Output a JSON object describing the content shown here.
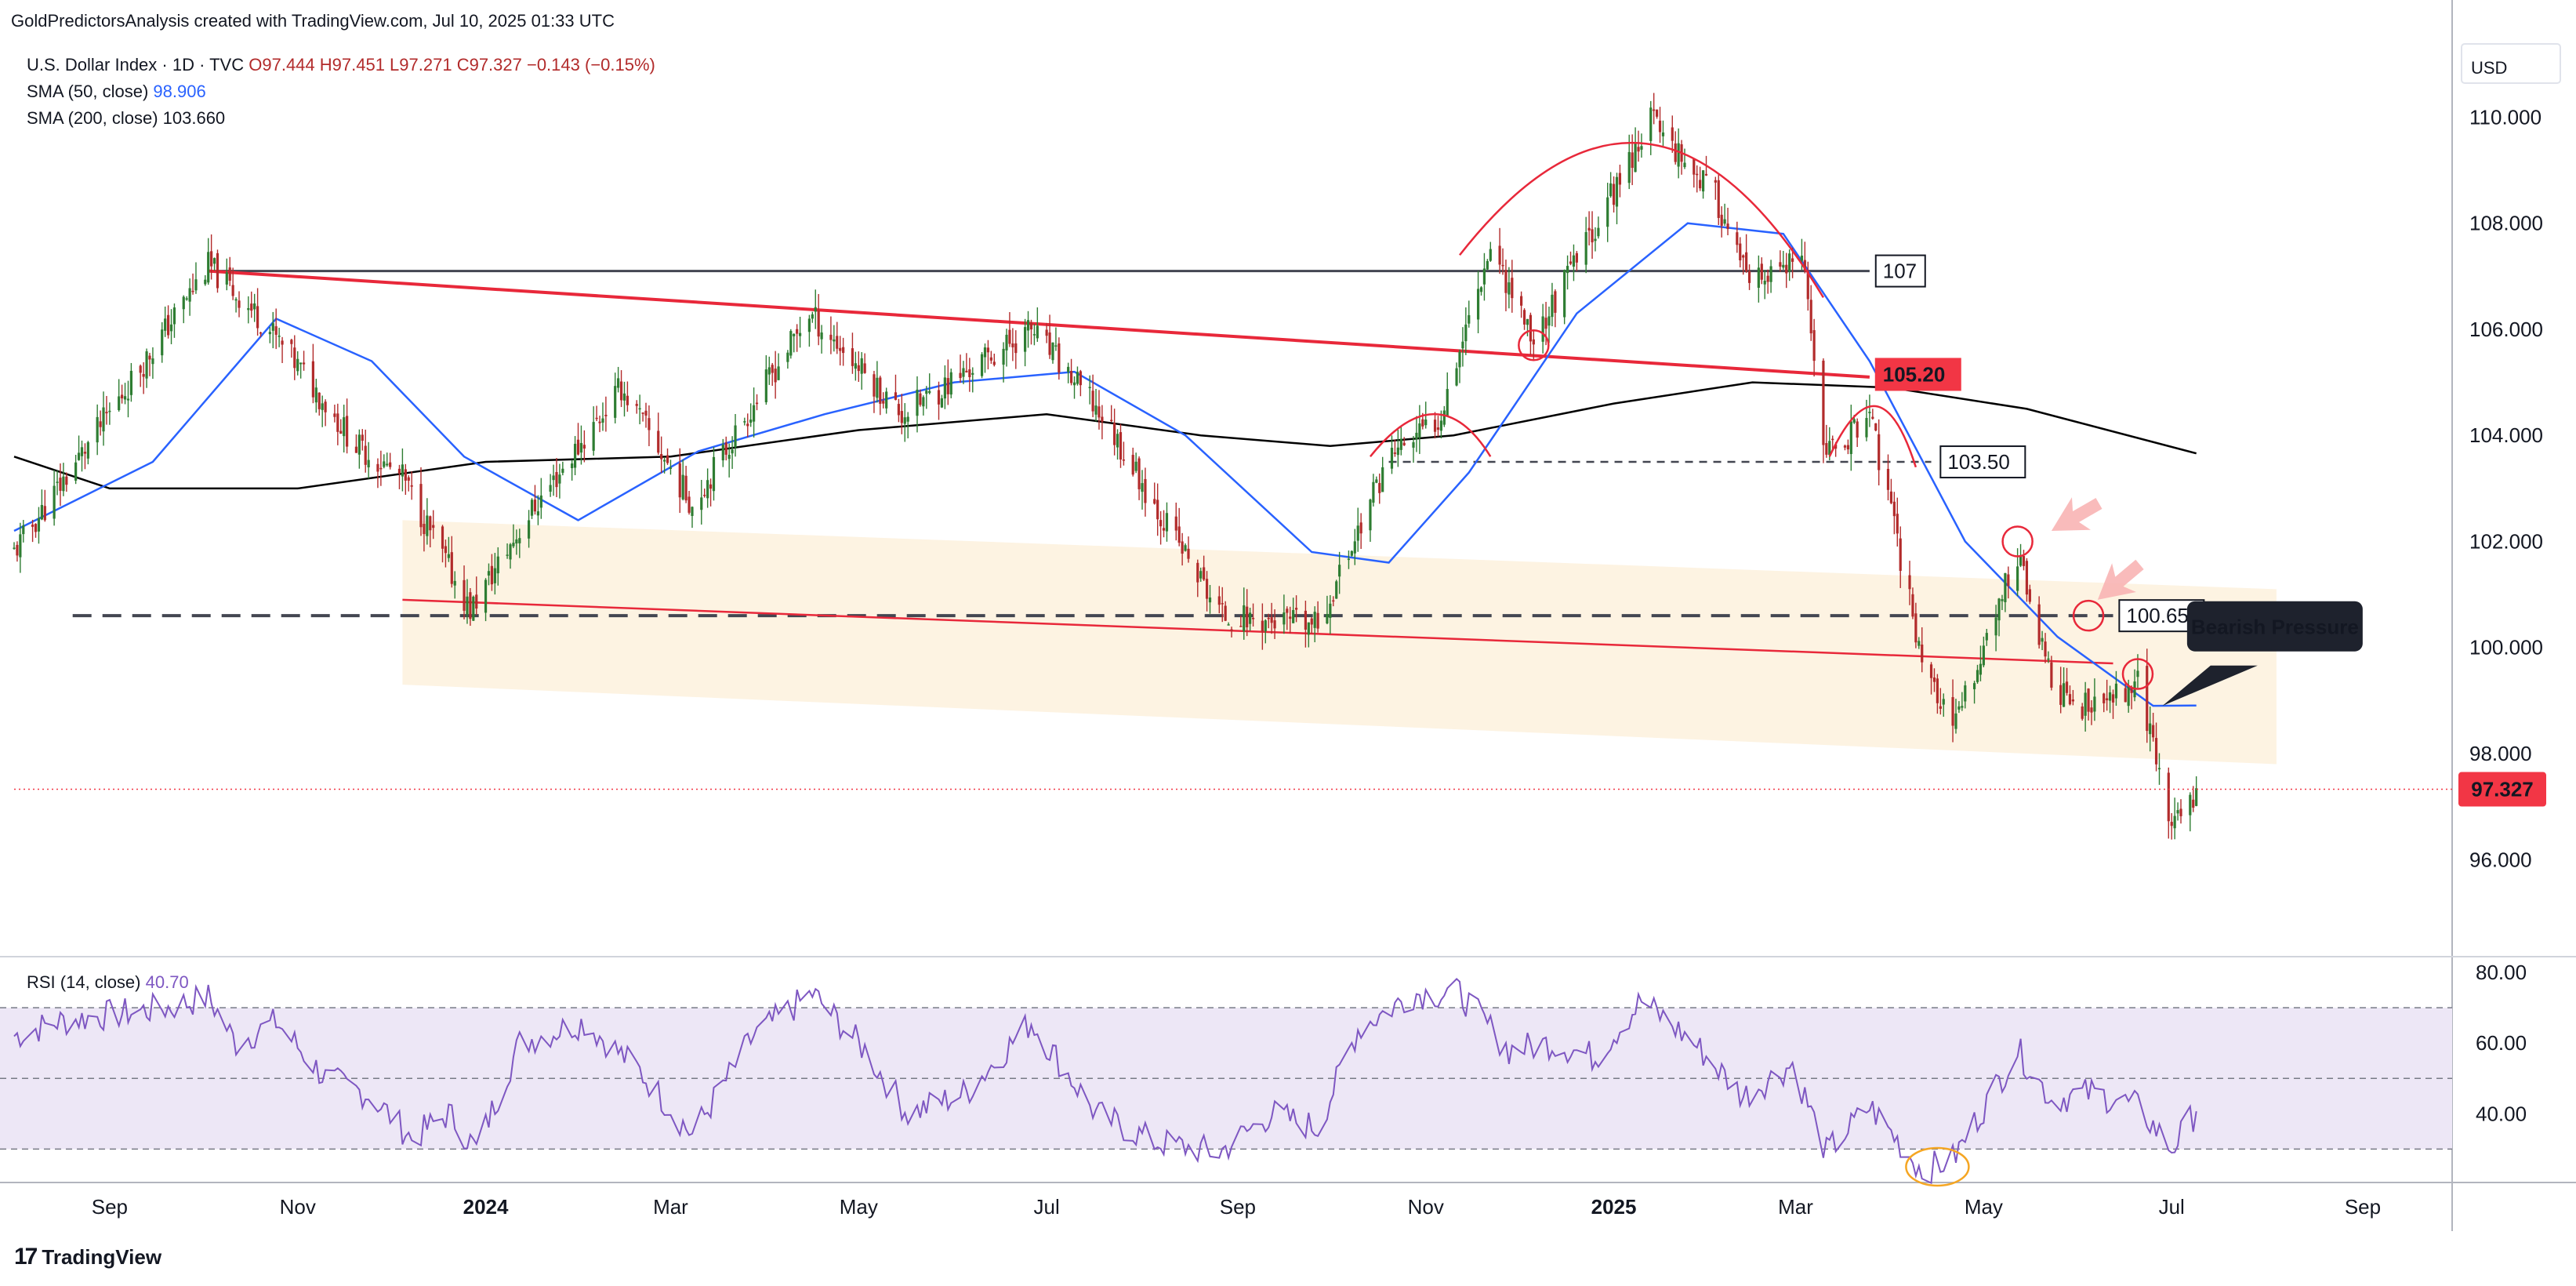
{
  "header": {
    "attribution": "GoldPredictorsAnalysis created with TradingView.com, Jul 10, 2025 01:33 UTC"
  },
  "legend": {
    "symbol": "U.S. Dollar Index · 1D · TVC",
    "ohlc": "O97.444 H97.451 L97.271 C97.327 −0.143 (−0.15%)",
    "sma50_label": "SMA (50, close)",
    "sma50_value": "98.906",
    "sma200_label": "SMA (200, close)",
    "sma200_value": "103.660",
    "rsi_label": "RSI (14, close)",
    "rsi_value": "40.70"
  },
  "currency": "USD",
  "price_badge": "97.327",
  "footer_logo": "TradingView",
  "colors": {
    "up": "#26a69a",
    "up_candle": "#2e7d32",
    "down": "#b22b2b",
    "sma50": "#2962ff",
    "sma200": "#000000",
    "trendline": "#e8283a",
    "channel": "#fdf3e2",
    "rsi_line": "#7e57c2",
    "rsi_band": "#ede7f6",
    "price_badge": "#f23645",
    "annotation_box": "#1e222d"
  },
  "annotations": {
    "level_107": "107",
    "level_105": "105.20",
    "level_103": "103.50",
    "level_100": "100.65",
    "bearish": "Bearish Pressure"
  },
  "chart_data": [
    {
      "type": "candlestick",
      "title": "U.S. Dollar Index · 1D · TVC",
      "x_ticks": [
        "Sep",
        "Nov",
        "2024",
        "Mar",
        "May",
        "Jul",
        "Sep",
        "Nov",
        "2025",
        "Mar",
        "May",
        "Jul",
        "Sep"
      ],
      "y_ticks": [
        "110.000",
        "108.000",
        "106.000",
        "104.000",
        "102.000",
        "100.000",
        "98.000",
        "96.000"
      ],
      "ylim": [
        94.2,
        111.5
      ],
      "x_range": [
        "2023-08-01",
        "2025-09-30"
      ],
      "price_path": [
        [
          "2023-08-01",
          101.8
        ],
        [
          "2023-08-20",
          103.4
        ],
        [
          "2023-09-10",
          105.2
        ],
        [
          "2023-10-03",
          107.2
        ],
        [
          "2023-10-20",
          106.2
        ],
        [
          "2023-11-05",
          105.0
        ],
        [
          "2023-11-20",
          103.8
        ],
        [
          "2023-12-05",
          103.2
        ],
        [
          "2023-12-27",
          100.7
        ],
        [
          "2024-01-15",
          102.5
        ],
        [
          "2024-02-14",
          104.9
        ],
        [
          "2024-03-08",
          102.7
        ],
        [
          "2024-04-15",
          106.3
        ],
        [
          "2024-05-15",
          104.4
        ],
        [
          "2024-06-26",
          106.0
        ],
        [
          "2024-07-20",
          104.3
        ],
        [
          "2024-08-05",
          102.7
        ],
        [
          "2024-08-27",
          100.6
        ],
        [
          "2024-09-27",
          100.4
        ],
        [
          "2024-10-20",
          103.6
        ],
        [
          "2024-11-05",
          104.3
        ],
        [
          "2024-11-22",
          107.6
        ],
        [
          "2024-12-06",
          105.8
        ],
        [
          "2024-12-31",
          108.5
        ],
        [
          "2025-01-13",
          110.0
        ],
        [
          "2025-02-03",
          108.5
        ],
        [
          "2025-02-14",
          106.8
        ],
        [
          "2025-03-03",
          107.3
        ],
        [
          "2025-03-11",
          103.6
        ],
        [
          "2025-03-25",
          104.4
        ],
        [
          "2025-04-11",
          99.8
        ],
        [
          "2025-04-21",
          98.4
        ],
        [
          "2025-05-12",
          101.8
        ],
        [
          "2025-05-23",
          99.3
        ],
        [
          "2025-06-05",
          98.8
        ],
        [
          "2025-06-20",
          99.4
        ],
        [
          "2025-07-01",
          96.6
        ],
        [
          "2025-07-09",
          97.33
        ]
      ],
      "last_close": 97.327,
      "sma50": [
        [
          "2023-08-01",
          102.2
        ],
        [
          "2023-09-15",
          103.5
        ],
        [
          "2023-10-25",
          106.2
        ],
        [
          "2023-11-25",
          105.4
        ],
        [
          "2023-12-25",
          103.6
        ],
        [
          "2024-01-31",
          102.4
        ],
        [
          "2024-03-10",
          103.7
        ],
        [
          "2024-04-20",
          104.4
        ],
        [
          "2024-06-01",
          105.0
        ],
        [
          "2024-07-10",
          105.2
        ],
        [
          "2024-08-15",
          104.0
        ],
        [
          "2024-09-25",
          101.8
        ],
        [
          "2024-10-20",
          101.6
        ],
        [
          "2024-11-15",
          103.3
        ],
        [
          "2024-12-20",
          106.3
        ],
        [
          "2025-01-25",
          108.0
        ],
        [
          "2025-02-25",
          107.8
        ],
        [
          "2025-03-25",
          105.4
        ],
        [
          "2025-04-25",
          102.0
        ],
        [
          "2025-05-25",
          100.2
        ],
        [
          "2025-06-25",
          98.9
        ],
        [
          "2025-07-09",
          98.906
        ]
      ],
      "sma200": [
        [
          "2023-08-01",
          103.6
        ],
        [
          "2023-09-01",
          103.0
        ],
        [
          "2023-11-01",
          103.0
        ],
        [
          "2024-01-01",
          103.5
        ],
        [
          "2024-03-01",
          103.6
        ],
        [
          "2024-05-01",
          104.1
        ],
        [
          "2024-07-01",
          104.4
        ],
        [
          "2024-08-20",
          104.0
        ],
        [
          "2024-10-01",
          103.8
        ],
        [
          "2024-11-10",
          104.0
        ],
        [
          "2025-01-01",
          104.6
        ],
        [
          "2025-02-15",
          105.0
        ],
        [
          "2025-04-01",
          104.9
        ],
        [
          "2025-05-15",
          104.5
        ],
        [
          "2025-07-09",
          103.66
        ]
      ],
      "horizontal_levels": [
        {
          "label": "107",
          "price": 107.1,
          "from": "2023-10-03",
          "to": "2025-03-25",
          "style": "solid"
        },
        {
          "label": "103.50",
          "price": 103.5,
          "from": "2024-10-20",
          "to": "2025-04-14",
          "style": "dashed"
        },
        {
          "label": "100.65",
          "price": 100.6,
          "from": "2023-08-20",
          "to": "2025-06-12",
          "style": "dashed"
        }
      ],
      "trendlines": [
        {
          "label": "105.20",
          "from": [
            "2023-10-03",
            107.1
          ],
          "to": [
            "2025-03-25",
            105.1
          ]
        },
        {
          "from": [
            "2023-12-05",
            100.9
          ],
          "to": [
            "2025-06-12",
            99.7
          ]
        }
      ],
      "channel": {
        "upper": [
          [
            "2023-12-05",
            102.4
          ],
          [
            "2025-08-04",
            101.1
          ]
        ],
        "lower": [
          [
            "2023-12-05",
            99.3
          ],
          [
            "2025-08-04",
            97.8
          ]
        ]
      },
      "annotation": "Bearish Pressure"
    },
    {
      "type": "line",
      "title": "RSI (14, close)",
      "y_ticks": [
        "80.00",
        "60.00",
        "40.00"
      ],
      "ylim": [
        21,
        84
      ],
      "bands": [
        30,
        50,
        70
      ],
      "last_value": 40.7,
      "values": [
        [
          "2023-08-01",
          62
        ],
        [
          "2023-08-15",
          66
        ],
        [
          "2023-09-01",
          68
        ],
        [
          "2023-09-20",
          70
        ],
        [
          "2023-10-03",
          73
        ],
        [
          "2023-10-12",
          60
        ],
        [
          "2023-10-25",
          66
        ],
        [
          "2023-11-10",
          50
        ],
        [
          "2023-11-25",
          45
        ],
        [
          "2023-12-08",
          33
        ],
        [
          "2023-12-20",
          40
        ],
        [
          "2023-12-29",
          30
        ],
        [
          "2024-01-12",
          60
        ],
        [
          "2024-02-02",
          66
        ],
        [
          "2024-02-20",
          52
        ],
        [
          "2024-03-08",
          34
        ],
        [
          "2024-03-28",
          62
        ],
        [
          "2024-04-16",
          74
        ],
        [
          "2024-05-03",
          58
        ],
        [
          "2024-05-17",
          40
        ],
        [
          "2024-06-05",
          46
        ],
        [
          "2024-06-26",
          66
        ],
        [
          "2024-07-17",
          40
        ],
        [
          "2024-08-05",
          32
        ],
        [
          "2024-08-26",
          29
        ],
        [
          "2024-09-12",
          40
        ],
        [
          "2024-09-27",
          36
        ],
        [
          "2024-10-10",
          64
        ],
        [
          "2024-10-28",
          74
        ],
        [
          "2024-11-12",
          74
        ],
        [
          "2024-11-28",
          58
        ],
        [
          "2024-12-12",
          60
        ],
        [
          "2024-12-26",
          56
        ],
        [
          "2025-01-10",
          72
        ],
        [
          "2025-01-27",
          60
        ],
        [
          "2025-02-12",
          45
        ],
        [
          "2025-02-28",
          54
        ],
        [
          "2025-03-11",
          29
        ],
        [
          "2025-03-25",
          42
        ],
        [
          "2025-04-11",
          24
        ],
        [
          "2025-04-21",
          27
        ],
        [
          "2025-05-12",
          58
        ],
        [
          "2025-05-23",
          44
        ],
        [
          "2025-06-05",
          46
        ],
        [
          "2025-06-20",
          42
        ],
        [
          "2025-07-01",
          30
        ],
        [
          "2025-07-09",
          40.7
        ]
      ]
    }
  ]
}
